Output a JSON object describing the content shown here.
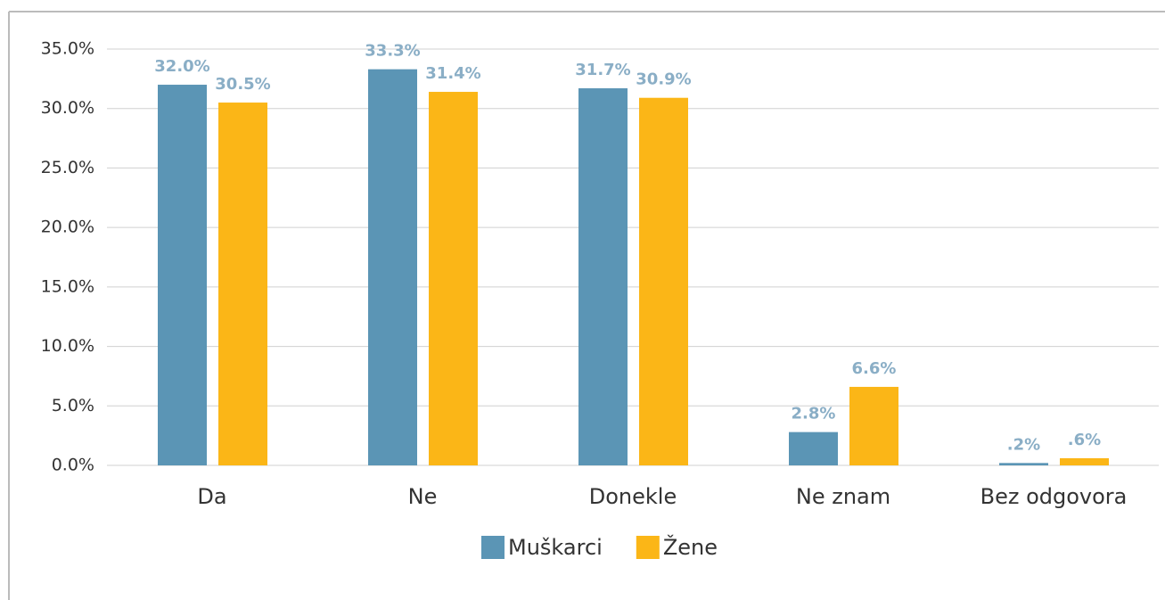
{
  "chart_data": {
    "type": "bar",
    "categories": [
      "Da",
      "Ne",
      "Donekle",
      "Ne znam",
      "Bez odgovora"
    ],
    "series": [
      {
        "name": "Muškarci",
        "color": "#5b95b5",
        "values": [
          32.0,
          33.3,
          31.7,
          2.8,
          0.2
        ],
        "value_labels": [
          "32.0%",
          "33.3%",
          "31.7%",
          "2.8%",
          ".2%"
        ]
      },
      {
        "name": "Žene",
        "color": "#fbb617",
        "values": [
          30.5,
          31.4,
          30.9,
          6.6,
          0.6
        ],
        "value_labels": [
          "30.5%",
          "31.4%",
          "30.9%",
          "6.6%",
          ".6%"
        ]
      }
    ],
    "ylim": [
      0,
      35
    ],
    "yticks": [
      {
        "value": 0,
        "label": "0.0%"
      },
      {
        "value": 5,
        "label": "5.0%"
      },
      {
        "value": 10,
        "label": "10.0%"
      },
      {
        "value": 15,
        "label": "15.0%"
      },
      {
        "value": 20,
        "label": "20.0%"
      },
      {
        "value": 25,
        "label": "25.0%"
      },
      {
        "value": 30,
        "label": "30.0%"
      },
      {
        "value": 35,
        "label": "35.0%"
      }
    ],
    "grid": true,
    "legend": "bottom"
  }
}
